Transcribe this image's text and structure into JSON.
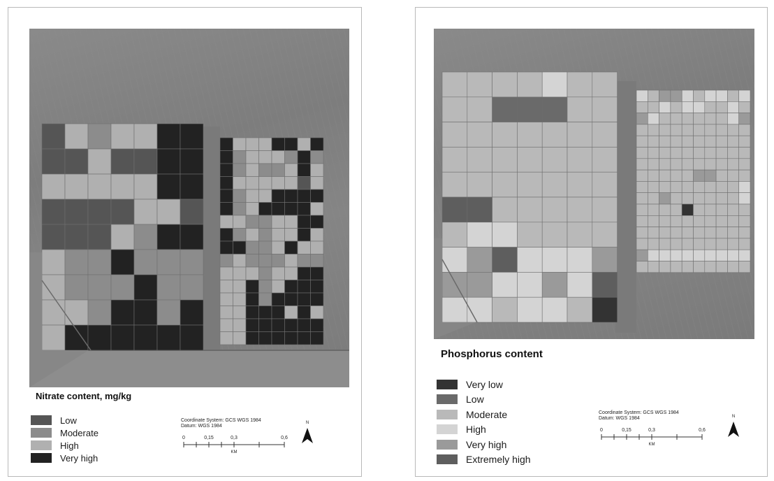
{
  "maps": {
    "left": {
      "legend_title": "Nitrate content, mg/kg",
      "legend": [
        {
          "label": "Low",
          "color": "#555555"
        },
        {
          "label": "Moderate",
          "color": "#8c8c8c"
        },
        {
          "label": "High",
          "color": "#b0b0b0"
        },
        {
          "label": "Very high",
          "color": "#222222"
        }
      ],
      "coordinate_system": "Coordinate System: GCS WGS 1984",
      "datum": "Datum: WGS 1984",
      "scale_ticks": [
        "0",
        "0,15",
        "0,3",
        "0,6"
      ],
      "scale_unit": "KM",
      "north_label": "N"
    },
    "right": {
      "legend_title": "Phosphorus content",
      "legend": [
        {
          "label": "Very low",
          "color": "#333333"
        },
        {
          "label": "Low",
          "color": "#6a6a6a"
        },
        {
          "label": "Moderate",
          "color": "#b9b9b9"
        },
        {
          "label": "High",
          "color": "#d4d4d4"
        },
        {
          "label": "Very high",
          "color": "#9a9a9a"
        },
        {
          "label": "Extremely high",
          "color": "#5e5e5e"
        }
      ],
      "coordinate_system": "Coordinate System: GCS WGS 1984",
      "datum": "Datum: WGS 1984",
      "scale_ticks": [
        "0",
        "0,15",
        "0,3",
        "0,6"
      ],
      "scale_unit": "KM",
      "north_label": "N"
    }
  },
  "grid_left_west": [
    [
      0,
      2,
      1,
      2,
      2,
      3,
      3
    ],
    [
      0,
      0,
      2,
      0,
      0,
      3,
      3
    ],
    [
      2,
      2,
      2,
      2,
      2,
      3,
      3
    ],
    [
      0,
      0,
      0,
      0,
      2,
      2,
      0
    ],
    [
      0,
      0,
      0,
      2,
      1,
      3,
      3
    ],
    [
      2,
      1,
      1,
      3,
      1,
      1,
      1
    ],
    [
      2,
      1,
      1,
      1,
      3,
      1,
      1
    ],
    [
      2,
      2,
      1,
      3,
      3,
      1,
      3
    ],
    [
      2,
      3,
      3,
      3,
      3,
      3,
      3
    ]
  ],
  "grid_left_east": [
    [
      3,
      2,
      2,
      2,
      3,
      3,
      2,
      3
    ],
    [
      3,
      1,
      2,
      2,
      2,
      1,
      3,
      1
    ],
    [
      3,
      1,
      2,
      1,
      1,
      2,
      3,
      2
    ],
    [
      3,
      2,
      2,
      2,
      2,
      2,
      0,
      2
    ],
    [
      3,
      1,
      2,
      2,
      3,
      3,
      3,
      3
    ],
    [
      3,
      1,
      2,
      3,
      3,
      3,
      3,
      2
    ],
    [
      2,
      2,
      1,
      1,
      2,
      2,
      3,
      3
    ],
    [
      3,
      1,
      2,
      1,
      2,
      2,
      3,
      2
    ],
    [
      3,
      3,
      1,
      1,
      2,
      3,
      2,
      2
    ],
    [
      1,
      2,
      1,
      1,
      1,
      2,
      1,
      1
    ],
    [
      2,
      2,
      2,
      1,
      2,
      2,
      3,
      3
    ],
    [
      2,
      2,
      3,
      1,
      2,
      3,
      3,
      3
    ],
    [
      2,
      2,
      3,
      1,
      3,
      3,
      3,
      3
    ],
    [
      2,
      2,
      3,
      3,
      3,
      2,
      3,
      2
    ],
    [
      2,
      2,
      3,
      3,
      3,
      3,
      3,
      3
    ],
    [
      2,
      2,
      3,
      3,
      3,
      3,
      3,
      3
    ]
  ],
  "grid_right_west": [
    [
      2,
      2,
      2,
      2,
      3,
      2,
      2
    ],
    [
      2,
      2,
      1,
      1,
      1,
      2,
      2
    ],
    [
      2,
      2,
      2,
      2,
      2,
      2,
      2
    ],
    [
      2,
      2,
      2,
      2,
      2,
      2,
      2
    ],
    [
      2,
      2,
      2,
      2,
      2,
      2,
      2
    ],
    [
      5,
      5,
      2,
      2,
      2,
      2,
      2
    ],
    [
      2,
      3,
      3,
      2,
      2,
      2,
      2
    ],
    [
      3,
      4,
      5,
      3,
      3,
      3,
      4
    ],
    [
      4,
      4,
      3,
      3,
      4,
      3,
      5
    ],
    [
      3,
      3,
      2,
      3,
      3,
      2,
      0
    ]
  ],
  "grid_right_east": [
    [
      3,
      2,
      4,
      4,
      3,
      2,
      3,
      3,
      2,
      3
    ],
    [
      2,
      2,
      3,
      2,
      3,
      3,
      2,
      2,
      3,
      2
    ],
    [
      4,
      3,
      2,
      2,
      2,
      2,
      2,
      2,
      3,
      4
    ],
    [
      2,
      2,
      2,
      2,
      2,
      2,
      2,
      2,
      2,
      2
    ],
    [
      2,
      2,
      2,
      2,
      2,
      2,
      2,
      2,
      2,
      2
    ],
    [
      2,
      2,
      2,
      2,
      2,
      2,
      2,
      2,
      2,
      2
    ],
    [
      2,
      2,
      2,
      2,
      2,
      2,
      2,
      2,
      2,
      2
    ],
    [
      2,
      2,
      2,
      2,
      2,
      4,
      4,
      2,
      2,
      2
    ],
    [
      2,
      2,
      2,
      2,
      2,
      2,
      2,
      2,
      2,
      3
    ],
    [
      2,
      2,
      4,
      2,
      2,
      2,
      2,
      2,
      2,
      3
    ],
    [
      2,
      2,
      2,
      2,
      0,
      2,
      2,
      2,
      2,
      2
    ],
    [
      2,
      2,
      2,
      2,
      2,
      2,
      2,
      2,
      2,
      2
    ],
    [
      2,
      2,
      2,
      2,
      2,
      2,
      2,
      2,
      2,
      2
    ],
    [
      2,
      2,
      2,
      2,
      2,
      2,
      2,
      2,
      2,
      2
    ],
    [
      4,
      3,
      3,
      3,
      3,
      3,
      3,
      3,
      3,
      3
    ],
    [
      2,
      2,
      2,
      2,
      2,
      2,
      2,
      2,
      2,
      2
    ]
  ]
}
